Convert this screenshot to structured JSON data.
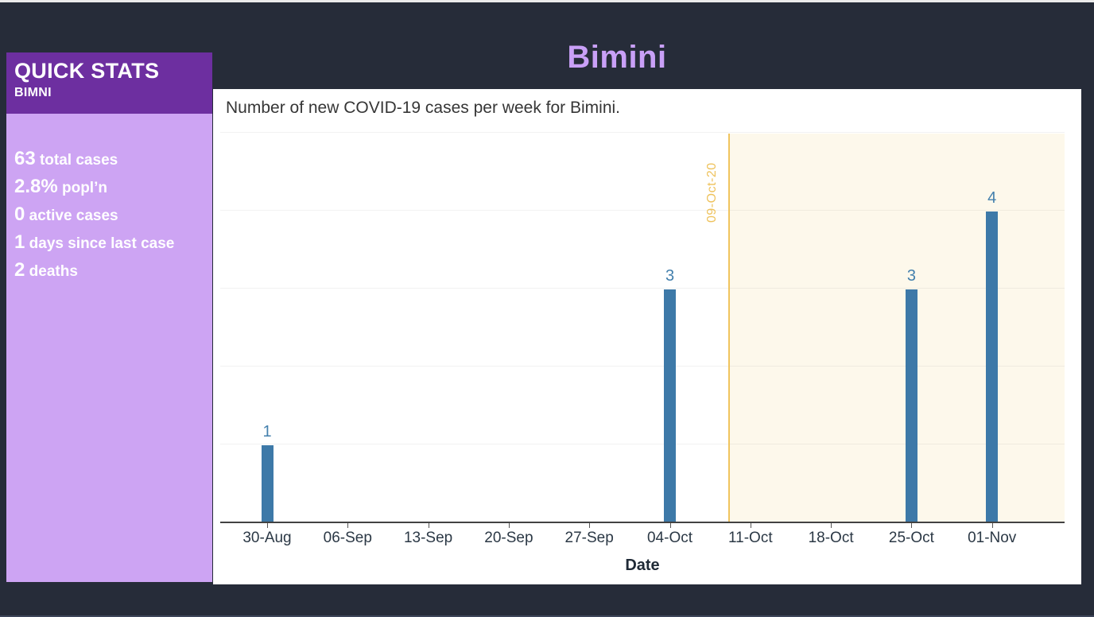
{
  "page": {
    "title": "Bimini"
  },
  "sidebar": {
    "header": "QUICK STATS",
    "subheader": "BIMNI",
    "stats": [
      {
        "value": "63",
        "label": "total cases"
      },
      {
        "value": "2.8%",
        "label": "popl’n"
      },
      {
        "value": "0",
        "label": "active cases"
      },
      {
        "value": "1",
        "label": "days since last case"
      },
      {
        "value": "2",
        "label": "deaths"
      }
    ]
  },
  "chart_data": {
    "type": "bar",
    "title": "Number of new COVID-19 cases per week for Bimini.",
    "xlabel": "Date",
    "ylabel": "",
    "categories": [
      "30-Aug",
      "06-Sep",
      "13-Sep",
      "20-Sep",
      "27-Sep",
      "04-Oct",
      "11-Oct",
      "18-Oct",
      "25-Oct",
      "01-Nov"
    ],
    "values": [
      1,
      0,
      0,
      0,
      0,
      3,
      0,
      0,
      3,
      4
    ],
    "ylim": [
      0,
      5
    ],
    "grid": true,
    "legend": "none",
    "bar_color": "#3d79a8",
    "annotation": {
      "label": "09-Oct-20",
      "type": "vertical-line",
      "position_between": [
        "04-Oct",
        "11-Oct"
      ],
      "line_color": "#f0c45e",
      "label_color": "#eec25c",
      "shaded_region": "right-of-line",
      "shade_color": "#fdf8eb"
    }
  },
  "colors": {
    "background": "#262c39",
    "sidebar_header": "#6d2fa0",
    "sidebar_body": "#cda4f3",
    "accent_title": "#c9a0f7",
    "bar": "#3d79a8"
  }
}
